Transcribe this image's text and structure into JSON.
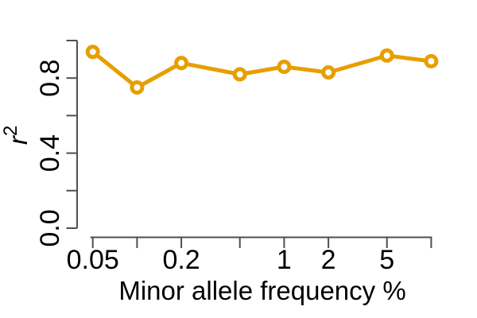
{
  "chart_data": {
    "type": "line",
    "title": "",
    "xlabel": "Minor allele frequency %",
    "ylabel": "r^2",
    "ylabel_base": "r",
    "ylabel_exponent": "2",
    "x_scale": "log",
    "x": [
      0.05,
      0.1,
      0.2,
      0.5,
      1,
      2,
      5,
      10
    ],
    "series": [
      {
        "name": "r-squared",
        "values": [
          0.94,
          0.75,
          0.88,
          0.82,
          0.86,
          0.83,
          0.92,
          0.89
        ]
      }
    ],
    "x_ticks": [
      0.05,
      0.1,
      0.2,
      0.5,
      1,
      2,
      5,
      10
    ],
    "x_tick_labels": [
      "0.05",
      "",
      "0.2",
      "",
      "1",
      "2",
      "5",
      ""
    ],
    "y_ticks": [
      0,
      0.2,
      0.4,
      0.6,
      0.8,
      1
    ],
    "y_tick_labels": [
      "0.0",
      "",
      "0.4",
      "",
      "0.8",
      ""
    ],
    "xlim": [
      0.05,
      10
    ],
    "ylim": [
      0,
      1
    ],
    "grid": false,
    "legend": false,
    "marker": "open-circle",
    "colors": {
      "line": "#E69F00",
      "marker_fill": "#FFFFFF",
      "axis": "#4f4f4f",
      "text": "#000000",
      "background": "#FFFFFF"
    }
  }
}
